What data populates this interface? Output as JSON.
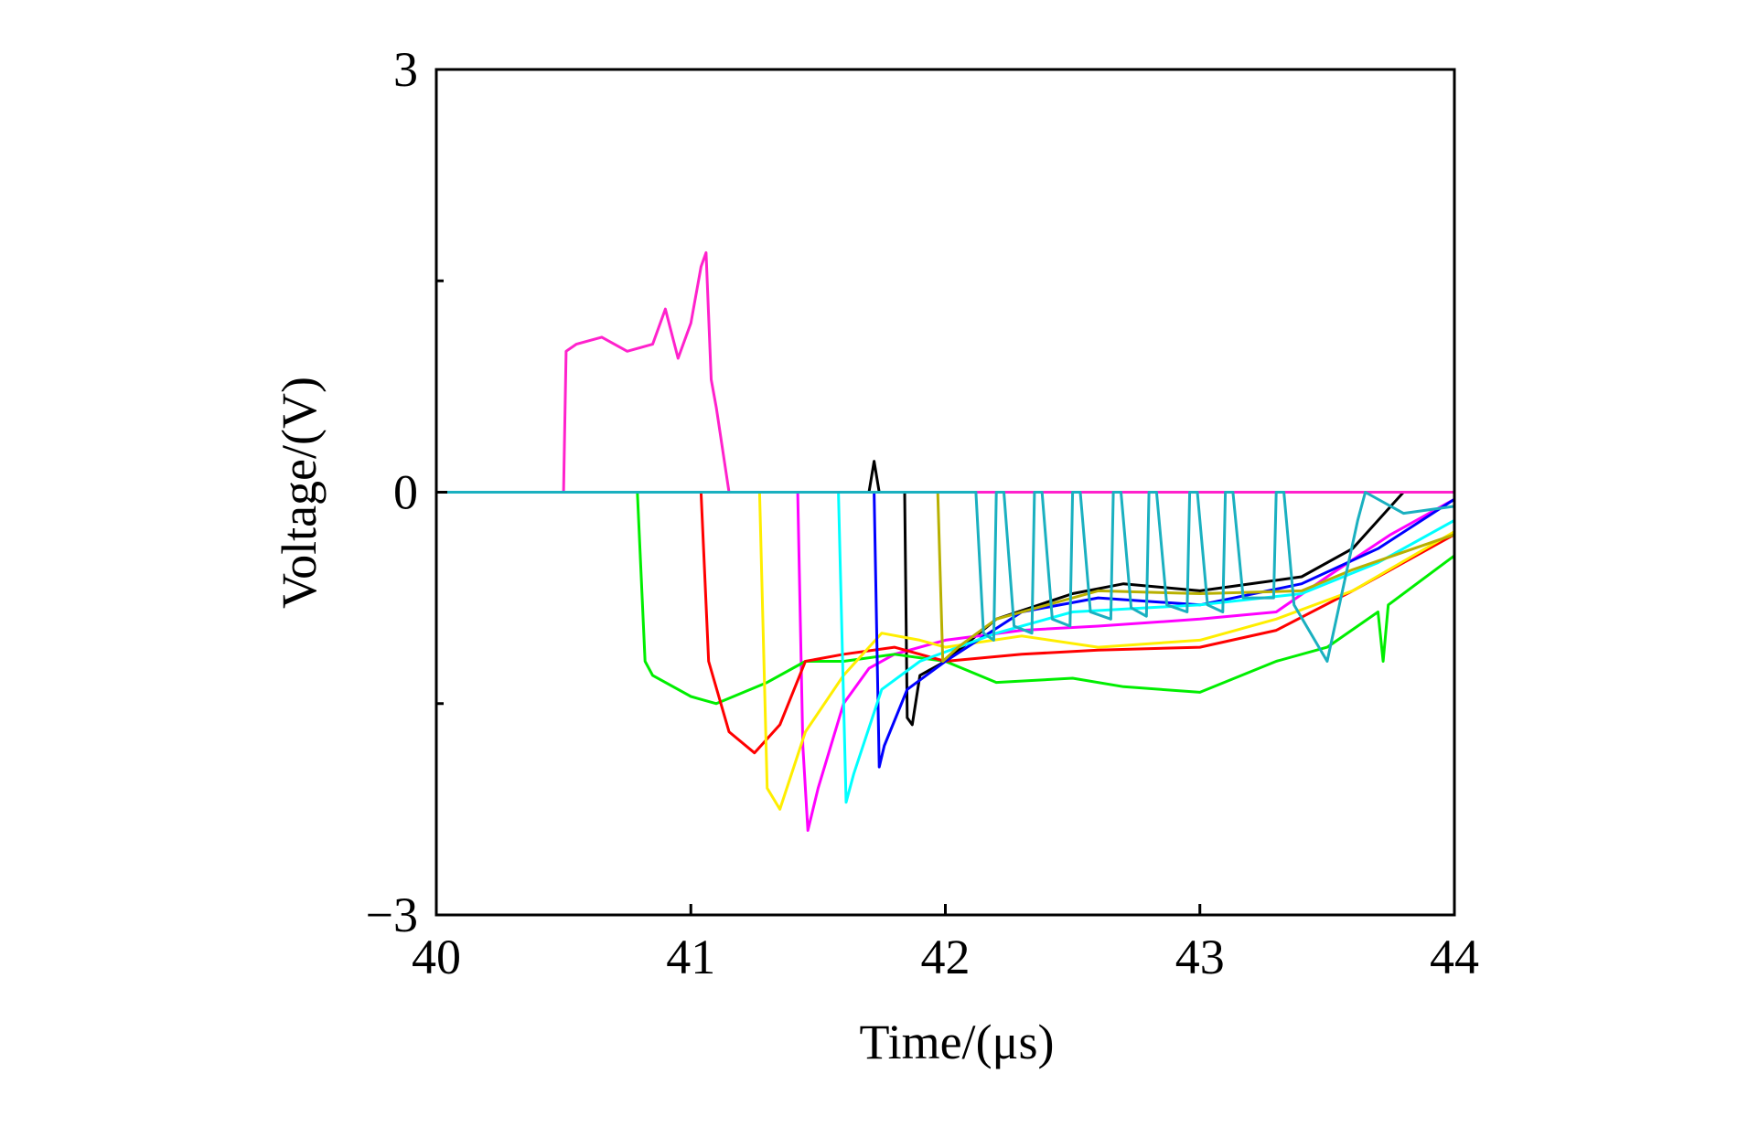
{
  "chart_data": {
    "type": "line",
    "x_label": "Time/(μs)",
    "y_label": "Voltage/(V)",
    "xlim": [
      40,
      44
    ],
    "xticks": [
      40,
      41,
      42,
      43,
      44
    ],
    "ylim": [
      -3,
      3
    ],
    "yticks": [
      {
        "value": -3,
        "label": "−3"
      },
      0,
      3
    ],
    "minor_yticks": [
      -1.5,
      1.5
    ],
    "grid": false,
    "series": [
      {
        "color": "#000000",
        "x": [
          40,
          41,
          41.7,
          41.72,
          41.74,
          41.84,
          41.85,
          41.87,
          41.9,
          42.0,
          42.2,
          42.5,
          42.7,
          43.0,
          43.4,
          43.6,
          43.8,
          44
        ],
        "values": [
          0,
          0,
          0,
          0.22,
          0,
          0,
          -1.6,
          -1.65,
          -1.3,
          -1.2,
          -0.9,
          -0.72,
          -0.65,
          -0.7,
          -0.6,
          -0.4,
          0,
          0
        ]
      },
      {
        "color": "#ff22cc",
        "x": [
          40,
          40.5,
          40.51,
          40.55,
          40.65,
          40.75,
          40.85,
          40.9,
          40.95,
          41.0,
          41.04,
          41.06,
          41.08,
          41.1,
          41.15,
          41.2,
          42,
          43,
          44
        ],
        "values": [
          0,
          0,
          1.0,
          1.05,
          1.1,
          1.0,
          1.05,
          1.3,
          0.95,
          1.2,
          1.6,
          1.7,
          0.8,
          0.6,
          0,
          0,
          0,
          0,
          0
        ]
      },
      {
        "color": "#ff00ff",
        "x": [
          40,
          41.42,
          41.44,
          41.46,
          41.5,
          41.6,
          41.7,
          41.8,
          42.0,
          42.3,
          42.6,
          43.0,
          43.3,
          43.5,
          43.75,
          44
        ],
        "values": [
          0,
          0,
          -1.8,
          -2.4,
          -2.1,
          -1.5,
          -1.25,
          -1.15,
          -1.05,
          -0.98,
          -0.95,
          -0.9,
          -0.85,
          -0.6,
          -0.3,
          -0.05
        ]
      },
      {
        "color": "#00ee00",
        "x": [
          40,
          40.79,
          40.82,
          40.85,
          41.0,
          41.1,
          41.3,
          41.45,
          41.6,
          41.8,
          42.0,
          42.2,
          42.5,
          42.7,
          43.0,
          43.3,
          43.5,
          43.7,
          43.72,
          43.74,
          44
        ],
        "values": [
          0,
          0,
          -1.2,
          -1.3,
          -1.45,
          -1.5,
          -1.35,
          -1.2,
          -1.2,
          -1.15,
          -1.2,
          -1.35,
          -1.32,
          -1.38,
          -1.42,
          -1.2,
          -1.1,
          -0.85,
          -1.2,
          -0.8,
          -0.45
        ]
      },
      {
        "color": "#ff0000",
        "x": [
          40,
          41.04,
          41.07,
          41.15,
          41.25,
          41.35,
          41.45,
          41.6,
          41.8,
          42.0,
          42.3,
          42.6,
          43.0,
          43.3,
          43.6,
          44
        ],
        "values": [
          0,
          0,
          -1.2,
          -1.7,
          -1.85,
          -1.65,
          -1.2,
          -1.15,
          -1.1,
          -1.2,
          -1.15,
          -1.12,
          -1.1,
          -0.98,
          -0.7,
          -0.3
        ]
      },
      {
        "color": "#ffee00",
        "x": [
          40,
          41.27,
          41.3,
          41.35,
          41.45,
          41.6,
          41.75,
          41.9,
          42.0,
          42.3,
          42.6,
          43.0,
          43.3,
          43.6,
          44
        ],
        "values": [
          0,
          0,
          -2.1,
          -2.25,
          -1.7,
          -1.3,
          -1.0,
          -1.05,
          -1.1,
          -1.02,
          -1.1,
          -1.05,
          -0.9,
          -0.7,
          -0.28
        ]
      },
      {
        "color": "#0000ff",
        "x": [
          40,
          41.72,
          41.74,
          41.76,
          41.85,
          42.0,
          42.3,
          42.6,
          43.0,
          43.4,
          43.7,
          44
        ],
        "values": [
          0,
          0,
          -1.95,
          -1.8,
          -1.4,
          -1.2,
          -0.85,
          -0.75,
          -0.8,
          -0.65,
          -0.4,
          -0.05
        ]
      },
      {
        "color": "#00ffff",
        "x": [
          40,
          41.58,
          41.61,
          41.64,
          41.75,
          41.9,
          42.2,
          42.5,
          43.0,
          43.4,
          43.7,
          44
        ],
        "values": [
          0,
          0,
          -2.2,
          -2.0,
          -1.4,
          -1.2,
          -1.0,
          -0.85,
          -0.8,
          -0.72,
          -0.5,
          -0.2
        ]
      },
      {
        "color": "#b8b000",
        "x": [
          40,
          41.97,
          41.99,
          42.05,
          42.2,
          42.6,
          43.0,
          43.4,
          43.6,
          44
        ],
        "values": [
          0,
          0,
          -1.2,
          -1.1,
          -0.9,
          -0.7,
          -0.72,
          -0.7,
          -0.55,
          -0.3
        ]
      },
      {
        "color": "#1ab0c0",
        "x": [
          40,
          42.1,
          42.12,
          42.15,
          42.19,
          42.2,
          42.23,
          42.27,
          42.34,
          42.35,
          42.38,
          42.42,
          42.49,
          42.5,
          42.53,
          42.57,
          42.65,
          42.66,
          42.69,
          42.73,
          42.79,
          42.8,
          42.83,
          42.87,
          42.95,
          42.96,
          42.99,
          43.03,
          43.09,
          43.1,
          43.13,
          43.17,
          43.29,
          43.3,
          43.33,
          43.37,
          43.5,
          43.62,
          43.65,
          43.8,
          44
        ],
        "values": [
          0,
          0,
          0,
          -1.0,
          -1.05,
          0,
          0,
          -0.95,
          -1.0,
          0,
          0,
          -0.9,
          -0.95,
          0,
          0,
          -0.85,
          -0.9,
          0,
          0,
          -0.82,
          -0.88,
          0,
          0,
          -0.8,
          -0.85,
          0,
          0,
          -0.8,
          -0.85,
          0,
          0,
          -0.75,
          -0.75,
          0,
          0,
          -0.8,
          -1.2,
          -0.2,
          0,
          -0.15,
          -0.1
        ]
      }
    ]
  }
}
